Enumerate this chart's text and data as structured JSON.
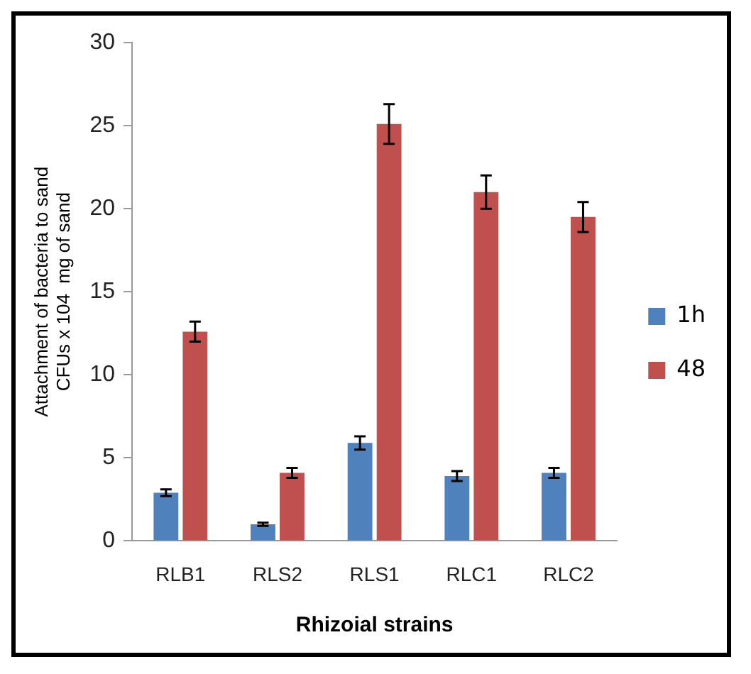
{
  "chart_data": {
    "type": "bar",
    "xlabel": "Rhizoial strains",
    "ylabel": "Attachment of bacteria to sand\nCFUs x 104  mg of sand",
    "categories": [
      "RLB1",
      "RLS2",
      "RLS1",
      "RLC1",
      "RLC2"
    ],
    "series": [
      {
        "name": "1h",
        "color": "#4f81bd",
        "values": [
          2.9,
          1.0,
          5.9,
          3.9,
          4.1
        ],
        "errors": [
          0.2,
          0.1,
          0.4,
          0.3,
          0.3
        ]
      },
      {
        "name": "48",
        "color": "#c0504d",
        "values": [
          12.6,
          4.1,
          25.1,
          21.0,
          19.5
        ],
        "errors": [
          0.6,
          0.3,
          1.2,
          1.0,
          0.9
        ]
      }
    ],
    "ylim": [
      0,
      30
    ],
    "yticks": [
      0,
      5,
      10,
      15,
      20,
      25,
      30
    ],
    "grid": false,
    "legend": "right"
  }
}
